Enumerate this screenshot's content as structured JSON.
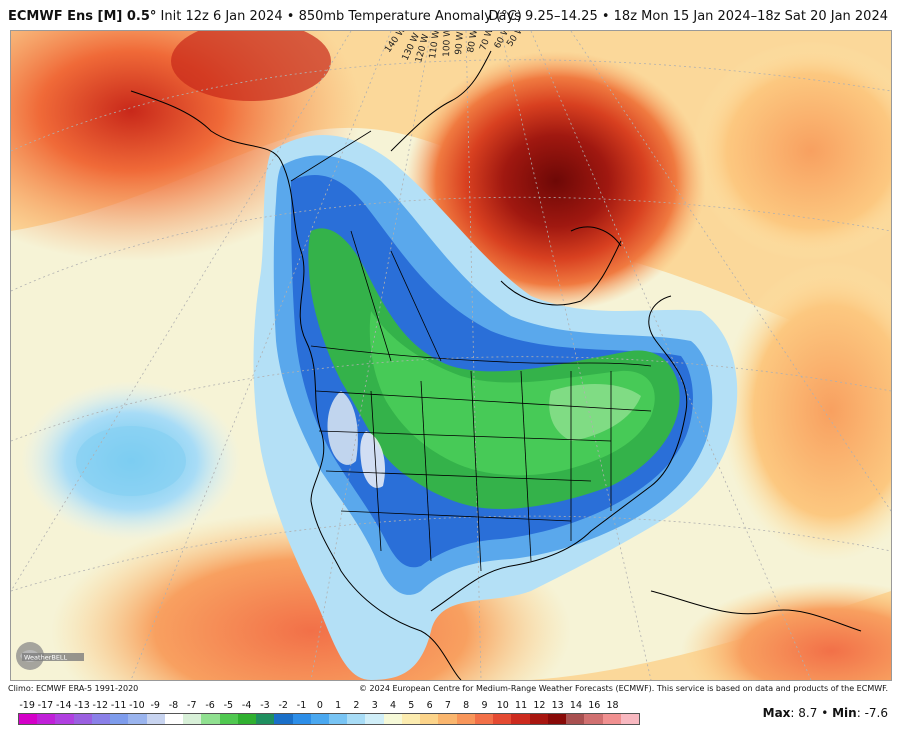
{
  "header": {
    "model": "ECMWF Ens [M] 0.5°",
    "init": "Init 12z 6 Jan 2024",
    "product": "850mb Temperature Anomaly (°C)",
    "valid": "Days 9.25–14.25 • 18z Mon 15 Jan 2024–18z Sat 20 Jan 2024"
  },
  "map": {
    "longitude_labels": [
      "140 W",
      "130 W",
      "120 W",
      "110 W",
      "100 W",
      "90 W",
      "80 W",
      "70 W",
      "60 W",
      "50 W"
    ],
    "logo_text": "WeatherBELL"
  },
  "footer": {
    "climo": "Climo: ECMWF ERA-5 1991-2020",
    "copyright": "© 2024 European Centre for Medium-Range Weather Forecasts (ECMWF). This service is based on data and products of the ECMWF."
  },
  "colorbar": {
    "labels": [
      "-19",
      "-17",
      "-14",
      "-13",
      "-12",
      "-11",
      "-10",
      "-9",
      "-8",
      "-7",
      "-6",
      "-5",
      "-4",
      "-3",
      "-2",
      "-1",
      "0",
      "1",
      "2",
      "3",
      "4",
      "5",
      "6",
      "7",
      "8",
      "9",
      "10",
      "11",
      "12",
      "13",
      "14",
      "16",
      "18"
    ],
    "colors": [
      "#d400c8",
      "#c020d8",
      "#b040e0",
      "#9a60e0",
      "#8a80e8",
      "#7e9cec",
      "#9ab4ee",
      "#c8d4f0",
      "#ffffff",
      "#d8f0d8",
      "#90e090",
      "#50c850",
      "#30b030",
      "#1f8f5f",
      "#1a6fc8",
      "#2d8ee8",
      "#4aa8f0",
      "#78c4f4",
      "#a8dcf6",
      "#d0eef8",
      "#f6f9d8",
      "#fcecb0",
      "#fcd48a",
      "#fab66e",
      "#f8965a",
      "#f27048",
      "#e44a32",
      "#cc2a1e",
      "#a81610",
      "#880a08",
      "#a85050",
      "#d07070",
      "#f09090",
      "#f8b8c0"
    ]
  },
  "stats": {
    "max_label": "Max",
    "max_value": "8.7",
    "separator": "•",
    "min_label": "Min",
    "min_value": "-7.6"
  },
  "colors": {
    "warm_max": "#7a0a08",
    "warm": "#e8602a",
    "mild": "#f8b070",
    "neutral": "#f6f6e0",
    "cool": "#a8dcf6",
    "blue": "#2e7ee0",
    "green": "#30b040"
  }
}
